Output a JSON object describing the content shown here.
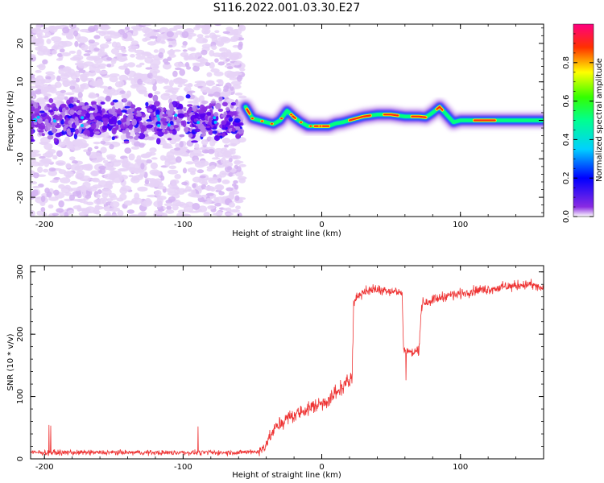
{
  "title": "S116.2022.001.03.30.E27",
  "colorbar": {
    "label": "Normalized spectral amplitude",
    "ticks": [
      "0.0",
      "0.2",
      "0.4",
      "0.6",
      "0.8"
    ],
    "range": [
      0,
      1
    ]
  },
  "chart_data": [
    {
      "type": "heatmap",
      "xlabel": "Height of straight line (km)",
      "ylabel": "Frequency (Hz)",
      "xlim": [
        -210,
        160
      ],
      "ylim": [
        -25,
        25
      ],
      "x_ticks": [
        "-200",
        "-100",
        "0",
        "100"
      ],
      "y_ticks": [
        "-20",
        "-10",
        "0",
        "10",
        "20"
      ],
      "noise_region": {
        "x": [
          -210,
          -57
        ],
        "frequency_spread": [
          -25,
          25
        ]
      },
      "ridge": {
        "x": [
          -55,
          -50,
          -45,
          -40,
          -35,
          -30,
          -25,
          -20,
          -15,
          -10,
          -5,
          0,
          5,
          10,
          15,
          20,
          30,
          40,
          50,
          60,
          70,
          75,
          80,
          85,
          90,
          95,
          100,
          110,
          120,
          130,
          140,
          150,
          160
        ],
        "frequency": [
          3.5,
          0.5,
          0,
          -0.5,
          -1,
          0,
          2.5,
          0.8,
          -0.5,
          -1.5,
          -1.5,
          -1.5,
          -1.5,
          -0.8,
          -0.5,
          0,
          1,
          1.5,
          1.5,
          1,
          1,
          0.8,
          2,
          3.5,
          1.5,
          -0.5,
          0,
          0,
          0,
          0,
          0,
          0,
          0
        ]
      }
    },
    {
      "type": "line",
      "xlabel": "Height of straight line (km)",
      "ylabel": "SNR (10 * v/v)",
      "xlim": [
        -210,
        160
      ],
      "ylim": [
        0,
        310
      ],
      "x_ticks": [
        "-200",
        "-100",
        "0",
        "100"
      ],
      "y_ticks": [
        "0",
        "100",
        "200",
        "300"
      ],
      "color": "#ee3333",
      "series": [
        {
          "x": [
            -210,
            -180,
            -150,
            -120,
            -90,
            -60,
            -45,
            -40,
            -35,
            -30,
            -25,
            -20,
            -15,
            -10,
            -5,
            0,
            5,
            10,
            15,
            20,
            22,
            23,
            25,
            30,
            40,
            50,
            58,
            59,
            65,
            70,
            72,
            73,
            80,
            90,
            100,
            110,
            120,
            130,
            140,
            150,
            160
          ],
          "values": [
            8,
            8,
            8,
            8,
            8,
            8,
            10,
            25,
            45,
            55,
            65,
            70,
            75,
            80,
            85,
            90,
            95,
            105,
            115,
            125,
            140,
            250,
            260,
            268,
            272,
            270,
            265,
            175,
            170,
            175,
            245,
            250,
            255,
            262,
            265,
            270,
            272,
            275,
            278,
            280,
            272
          ]
        }
      ]
    }
  ]
}
